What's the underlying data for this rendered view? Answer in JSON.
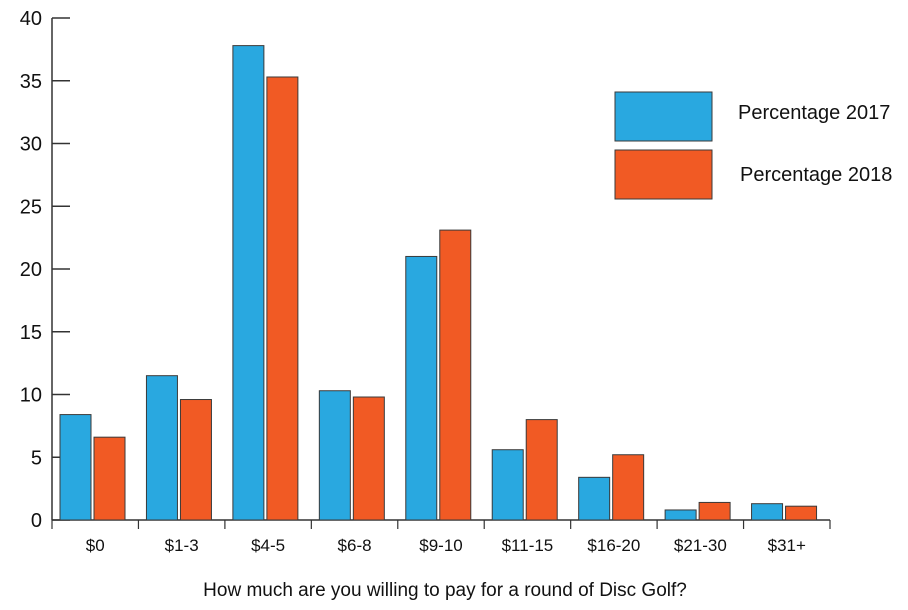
{
  "chart_data": {
    "type": "bar",
    "title": "",
    "xlabel": "How much are you willing to pay for a round of Disc Golf?",
    "ylabel": "",
    "ylim": [
      0,
      40
    ],
    "yticks": [
      0,
      5,
      10,
      15,
      20,
      25,
      30,
      35,
      40
    ],
    "categories": [
      "$0",
      "$1-3",
      "$4-5",
      "$6-8",
      "$9-10",
      "$11-15",
      "$16-20",
      "$21-30",
      "$31+"
    ],
    "series": [
      {
        "name": "Percentage 2017",
        "color": "#29a8e0",
        "values": [
          8.4,
          11.5,
          37.8,
          10.3,
          21.0,
          5.6,
          3.4,
          0.8,
          1.3
        ]
      },
      {
        "name": "Percentage 2018",
        "color": "#f15a24",
        "values": [
          6.6,
          9.6,
          35.3,
          9.8,
          23.1,
          8.0,
          5.2,
          1.4,
          1.1
        ]
      }
    ],
    "grid": false,
    "legend_position": "top-right"
  }
}
